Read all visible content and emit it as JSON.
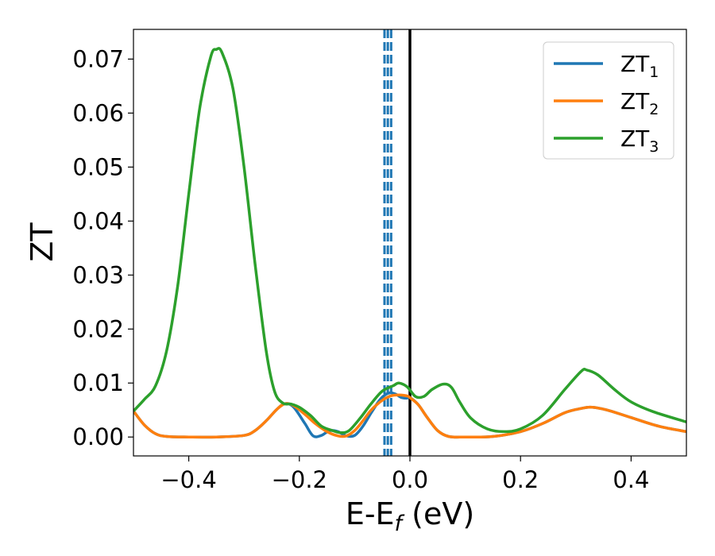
{
  "chart_data": {
    "type": "line",
    "xlabel": {
      "main": "E-E",
      "sub": "f",
      "unit": " (eV)"
    },
    "ylabel": "ZT",
    "xlim": [
      -0.5,
      0.5
    ],
    "ylim": [
      -0.0035,
      0.0755
    ],
    "xticks": [
      -0.4,
      -0.2,
      0.0,
      0.2,
      0.4
    ],
    "xtick_labels": [
      "−0.4",
      "−0.2",
      "0.0",
      "0.2",
      "0.4"
    ],
    "yticks": [
      0.0,
      0.01,
      0.02,
      0.03,
      0.04,
      0.05,
      0.06,
      0.07
    ],
    "ytick_labels": [
      "0.00",
      "0.01",
      "0.02",
      "0.03",
      "0.04",
      "0.05",
      "0.06",
      "0.07"
    ],
    "legend_position": "top-right",
    "vertical_lines": [
      {
        "x": 0.0,
        "style": "solid",
        "color": "#000000"
      },
      {
        "x": -0.046,
        "style": "dashed",
        "color": "#1f77b4"
      },
      {
        "x": -0.04,
        "style": "dashed",
        "color": "#1f77b4"
      },
      {
        "x": -0.034,
        "style": "dashed",
        "color": "#1f77b4"
      }
    ],
    "series": [
      {
        "name": "ZT",
        "sub": "1",
        "color": "#1f77b4",
        "points": [
          [
            -0.5,
            0.0048
          ],
          [
            -0.48,
            0.0022
          ],
          [
            -0.46,
            0.0006
          ],
          [
            -0.44,
            0.0001
          ],
          [
            -0.4,
            0.0
          ],
          [
            -0.35,
            0.0
          ],
          [
            -0.3,
            0.0003
          ],
          [
            -0.28,
            0.0012
          ],
          [
            -0.26,
            0.003
          ],
          [
            -0.24,
            0.0052
          ],
          [
            -0.225,
            0.0062
          ],
          [
            -0.21,
            0.0055
          ],
          [
            -0.19,
            0.0025
          ],
          [
            -0.175,
            0.0002
          ],
          [
            -0.16,
            0.0003
          ],
          [
            -0.145,
            0.0012
          ],
          [
            -0.13,
            0.001
          ],
          [
            -0.115,
            0.0002
          ],
          [
            -0.1,
            0.0003
          ],
          [
            -0.085,
            0.002
          ],
          [
            -0.07,
            0.0045
          ],
          [
            -0.055,
            0.0068
          ],
          [
            -0.045,
            0.0078
          ],
          [
            -0.035,
            0.0082
          ],
          [
            -0.025,
            0.0079
          ],
          [
            -0.015,
            0.0073
          ],
          [
            -0.005,
            0.0072
          ],
          [
            0.0,
            0.0073
          ],
          [
            0.015,
            0.006
          ],
          [
            0.03,
            0.0038
          ],
          [
            0.05,
            0.0012
          ],
          [
            0.07,
            0.0001
          ],
          [
            0.1,
            0.0
          ],
          [
            0.15,
            0.0001
          ],
          [
            0.2,
            0.001
          ],
          [
            0.24,
            0.0025
          ],
          [
            0.28,
            0.0045
          ],
          [
            0.31,
            0.0053
          ],
          [
            0.33,
            0.0055
          ],
          [
            0.36,
            0.0049
          ],
          [
            0.4,
            0.0036
          ],
          [
            0.45,
            0.002
          ],
          [
            0.5,
            0.001
          ]
        ]
      },
      {
        "name": "ZT",
        "sub": "2",
        "color": "#ff7f0e",
        "points": [
          [
            -0.5,
            0.0048
          ],
          [
            -0.48,
            0.0022
          ],
          [
            -0.46,
            0.0006
          ],
          [
            -0.44,
            0.0001
          ],
          [
            -0.4,
            0.0
          ],
          [
            -0.35,
            0.0
          ],
          [
            -0.3,
            0.0003
          ],
          [
            -0.28,
            0.0012
          ],
          [
            -0.26,
            0.003
          ],
          [
            -0.24,
            0.0052
          ],
          [
            -0.225,
            0.0062
          ],
          [
            -0.21,
            0.0058
          ],
          [
            -0.19,
            0.0042
          ],
          [
            -0.17,
            0.0024
          ],
          [
            -0.15,
            0.001
          ],
          [
            -0.13,
            0.0002
          ],
          [
            -0.115,
            0.0002
          ],
          [
            -0.1,
            0.0012
          ],
          [
            -0.085,
            0.003
          ],
          [
            -0.07,
            0.005
          ],
          [
            -0.05,
            0.0068
          ],
          [
            -0.035,
            0.0076
          ],
          [
            -0.02,
            0.0078
          ],
          [
            -0.005,
            0.0076
          ],
          [
            0.0,
            0.0073
          ],
          [
            0.015,
            0.006
          ],
          [
            0.03,
            0.0038
          ],
          [
            0.05,
            0.0012
          ],
          [
            0.07,
            0.0001
          ],
          [
            0.1,
            0.0
          ],
          [
            0.15,
            0.0001
          ],
          [
            0.2,
            0.001
          ],
          [
            0.24,
            0.0025
          ],
          [
            0.28,
            0.0045
          ],
          [
            0.31,
            0.0053
          ],
          [
            0.33,
            0.0055
          ],
          [
            0.36,
            0.0049
          ],
          [
            0.4,
            0.0036
          ],
          [
            0.45,
            0.002
          ],
          [
            0.5,
            0.001
          ]
        ]
      },
      {
        "name": "ZT",
        "sub": "3",
        "color": "#2ca02c",
        "points": [
          [
            -0.5,
            0.0048
          ],
          [
            -0.48,
            0.007
          ],
          [
            -0.46,
            0.0095
          ],
          [
            -0.44,
            0.016
          ],
          [
            -0.42,
            0.028
          ],
          [
            -0.4,
            0.045
          ],
          [
            -0.38,
            0.061
          ],
          [
            -0.36,
            0.0705
          ],
          [
            -0.35,
            0.0718
          ],
          [
            -0.34,
            0.0712
          ],
          [
            -0.32,
            0.0645
          ],
          [
            -0.3,
            0.05
          ],
          [
            -0.28,
            0.032
          ],
          [
            -0.26,
            0.016
          ],
          [
            -0.245,
            0.0085
          ],
          [
            -0.23,
            0.0063
          ],
          [
            -0.215,
            0.0061
          ],
          [
            -0.2,
            0.0055
          ],
          [
            -0.18,
            0.004
          ],
          [
            -0.16,
            0.002
          ],
          [
            -0.14,
            0.0012
          ],
          [
            -0.125,
            0.0008
          ],
          [
            -0.11,
            0.0012
          ],
          [
            -0.09,
            0.0035
          ],
          [
            -0.07,
            0.0062
          ],
          [
            -0.05,
            0.0085
          ],
          [
            -0.03,
            0.0095
          ],
          [
            -0.02,
            0.01
          ],
          [
            -0.005,
            0.0093
          ],
          [
            0.01,
            0.0075
          ],
          [
            0.025,
            0.0075
          ],
          [
            0.04,
            0.0088
          ],
          [
            0.06,
            0.0098
          ],
          [
            0.075,
            0.0092
          ],
          [
            0.09,
            0.0065
          ],
          [
            0.11,
            0.0035
          ],
          [
            0.14,
            0.0015
          ],
          [
            0.17,
            0.001
          ],
          [
            0.2,
            0.0015
          ],
          [
            0.24,
            0.004
          ],
          [
            0.28,
            0.0088
          ],
          [
            0.31,
            0.0122
          ],
          [
            0.32,
            0.0124
          ],
          [
            0.34,
            0.0115
          ],
          [
            0.37,
            0.0088
          ],
          [
            0.4,
            0.0065
          ],
          [
            0.44,
            0.0047
          ],
          [
            0.5,
            0.0028
          ]
        ]
      }
    ]
  }
}
